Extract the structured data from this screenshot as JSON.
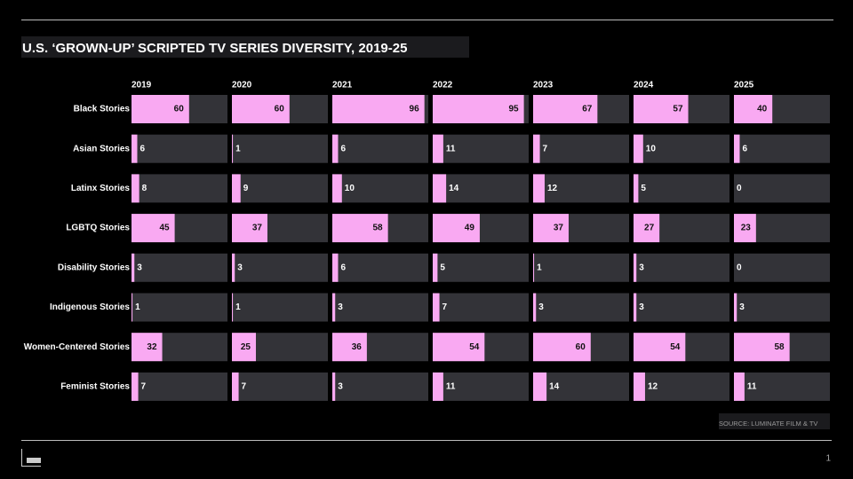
{
  "chart_data": {
    "type": "bar",
    "title": "U.S. ‘GROWN-UP’ SCRIPTED TV SERIES DIVERSITY, 2019-25",
    "source": "SOURCE: LUMINATE FILM & TV",
    "categories": [
      "Black Stories",
      "Asian Stories",
      "Latinx Stories",
      "LGBTQ Stories",
      "Disability Stories",
      "Indigenous Stories",
      "Women-Centered Stories",
      "Feminist Stories"
    ],
    "color": "#f9a9f2",
    "track_color": "#333338",
    "xlim": [
      0,
      100
    ],
    "series": [
      {
        "name": "2019",
        "values": [
          60,
          6,
          8,
          45,
          3,
          1,
          32,
          7
        ]
      },
      {
        "name": "2020",
        "values": [
          60,
          1,
          9,
          37,
          3,
          1,
          25,
          7
        ]
      },
      {
        "name": "2021",
        "values": [
          96,
          6,
          10,
          58,
          6,
          3,
          36,
          3
        ]
      },
      {
        "name": "2022",
        "values": [
          95,
          11,
          14,
          49,
          5,
          7,
          54,
          11
        ]
      },
      {
        "name": "2023",
        "values": [
          67,
          7,
          12,
          37,
          1,
          3,
          60,
          14
        ]
      },
      {
        "name": "2024",
        "values": [
          57,
          10,
          5,
          27,
          3,
          3,
          54,
          12
        ]
      },
      {
        "name": "2025",
        "values": [
          40,
          6,
          0,
          23,
          0,
          3,
          58,
          11
        ]
      }
    ]
  },
  "page_number": "1"
}
